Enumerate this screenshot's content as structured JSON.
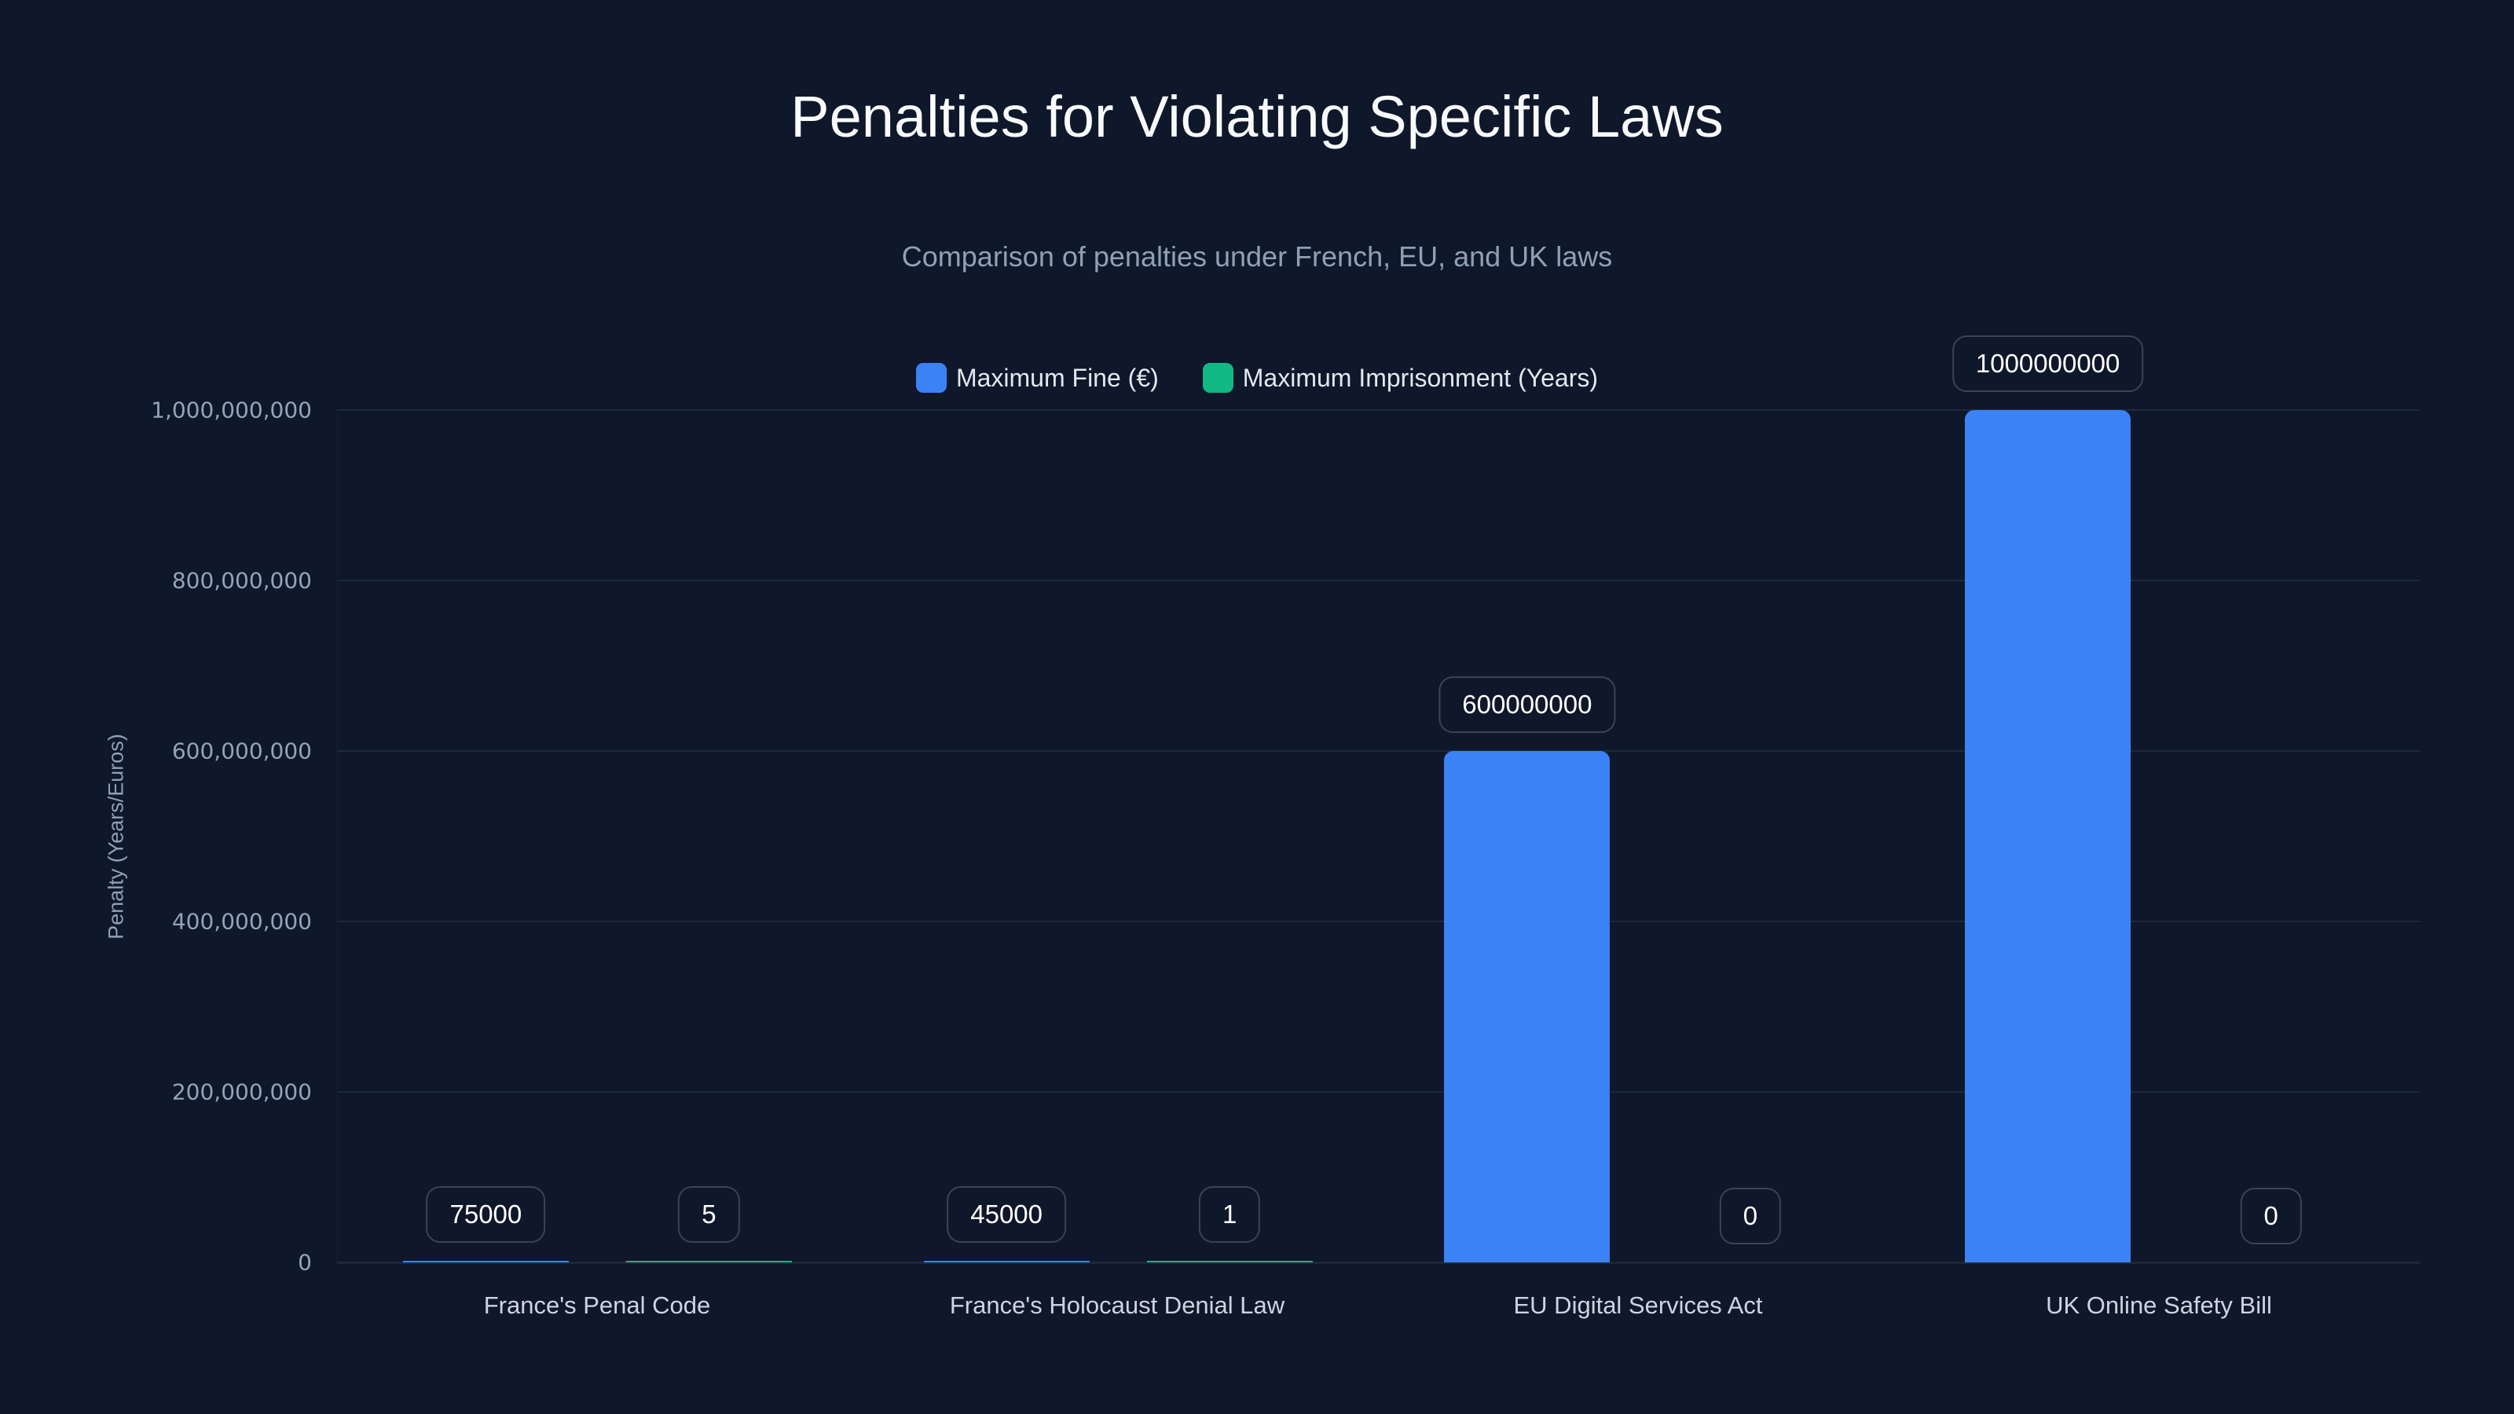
{
  "title": "Penalties for Violating Specific Laws",
  "subtitle": "Comparison of penalties under French, EU, and UK laws",
  "legend": [
    {
      "label": "Maximum Fine (€)",
      "color": "#3b82f6"
    },
    {
      "label": "Maximum Imprisonment (Years)",
      "color": "#10b981"
    }
  ],
  "y_axis": {
    "title": "Penalty (Years/Euros)",
    "ticks": [
      "0",
      "200,000,000",
      "400,000,000",
      "600,000,000",
      "800,000,000",
      "1,000,000,000"
    ]
  },
  "x_axis": {
    "labels": [
      "France's Penal Code",
      "France's Holocaust Denial Law",
      "EU Digital Services Act",
      "UK Online Safety Bill"
    ]
  },
  "chart_data": {
    "type": "bar",
    "title": "Penalties for Violating Specific Laws",
    "subtitle": "Comparison of penalties under French, EU, and UK laws",
    "xlabel": "",
    "ylabel": "Penalty (Years/Euros)",
    "ylim": [
      0,
      1000000000
    ],
    "yticks": [
      0,
      200000000,
      400000000,
      600000000,
      800000000,
      1000000000
    ],
    "grid": true,
    "legend_position": "top",
    "categories": [
      "France's Penal Code",
      "France's Holocaust Denial Law",
      "EU Digital Services Act",
      "UK Online Safety Bill"
    ],
    "series": [
      {
        "name": "Maximum Fine (€)",
        "color": "#3b82f6",
        "values": [
          75000,
          45000,
          600000000,
          1000000000
        ]
      },
      {
        "name": "Maximum Imprisonment (Years)",
        "color": "#10b981",
        "values": [
          5,
          1,
          0,
          0
        ]
      }
    ],
    "data_labels": [
      [
        "75000",
        "45000",
        "600000000",
        "1000000000"
      ],
      [
        "5",
        "1",
        "0",
        "0"
      ]
    ]
  }
}
